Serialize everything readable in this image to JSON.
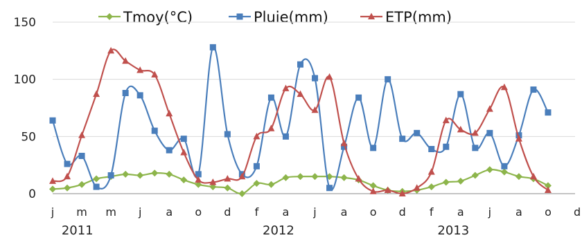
{
  "chart_data": {
    "type": "line",
    "x_months": [
      "j",
      "f",
      "m",
      "a",
      "m",
      "j",
      "j",
      "a",
      "s",
      "o",
      "n",
      "d",
      "j",
      "f",
      "m",
      "a",
      "m",
      "j",
      "j",
      "a",
      "s",
      "o",
      "n",
      "d",
      "j",
      "f",
      "m",
      "a",
      "m",
      "j",
      "j",
      "a",
      "s",
      "o",
      "n",
      "d"
    ],
    "x_tick_labels": [
      "j",
      "m",
      "m",
      "j",
      "a",
      "o",
      "d",
      "f",
      "a",
      "j",
      "a",
      "o",
      "d",
      "f",
      "a",
      "j",
      "a",
      "o",
      "d"
    ],
    "year_labels": [
      "2011",
      "2012",
      "2013"
    ],
    "yticks": [
      "0",
      "50",
      "100",
      "150"
    ],
    "ylim": [
      0,
      150
    ],
    "legend_position": "top",
    "grid": "horizontal",
    "series": [
      {
        "name": "Tmoy(°C)",
        "color": "#8DB54B",
        "marker": "diamond",
        "values": [
          4,
          5,
          8,
          13,
          15,
          17,
          16,
          18,
          17,
          12,
          8,
          6,
          5,
          0,
          9,
          8,
          14,
          15,
          15,
          15,
          14,
          12,
          7,
          3,
          2,
          3,
          6,
          10,
          11,
          16,
          21,
          19,
          15,
          13,
          7
        ]
      },
      {
        "name": "Pluie(mm)",
        "color": "#4A7EBB",
        "marker": "square",
        "values": [
          64,
          26,
          33,
          6,
          16,
          88,
          86,
          55,
          38,
          48,
          17,
          128,
          52,
          17,
          24,
          84,
          50,
          113,
          101,
          5,
          41,
          84,
          40,
          100,
          48,
          53,
          39,
          41,
          87,
          40,
          53,
          24,
          51,
          91,
          71
        ]
      },
      {
        "name": "ETP(mm)",
        "color": "#C0504D",
        "marker": "triangle",
        "values": [
          11,
          15,
          51,
          87,
          125,
          116,
          108,
          104,
          70,
          36,
          12,
          10,
          13,
          15,
          50,
          57,
          92,
          87,
          73,
          102,
          44,
          13,
          2,
          3,
          0,
          5,
          19,
          64,
          56,
          53,
          74,
          93,
          48,
          15,
          3
        ]
      }
    ]
  }
}
